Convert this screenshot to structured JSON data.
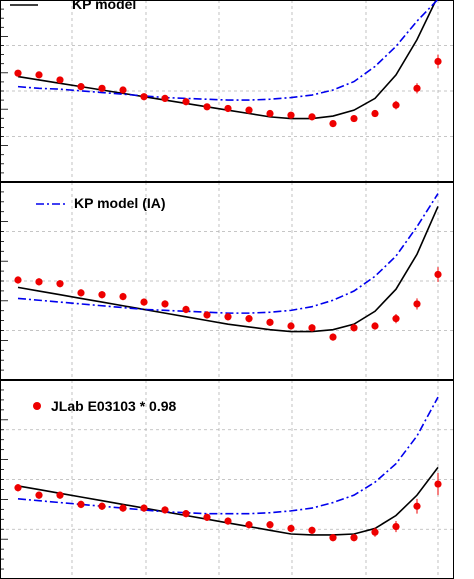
{
  "colors": {
    "frame": "#000000",
    "grid": "#b4b4b4",
    "kp_model": "#000000",
    "kp_model_ia": "#0000ee",
    "jlab_data": "#ee0000"
  },
  "legend": {
    "kp_model": "KP model",
    "kp_model_ia": "KP model (IA)",
    "jlab": "JLab E03103 * 0.98"
  },
  "chart_data": [
    {
      "type": "scatter",
      "panel": "top",
      "grid": true,
      "legend_position": "top-left",
      "xlim": [
        0,
        20
      ],
      "ylim": [
        0,
        1
      ],
      "series": [
        {
          "name": "KP model",
          "kind": "line",
          "style": "solid",
          "x": [
            0,
            1,
            2,
            3,
            4,
            5,
            6,
            7,
            8,
            9,
            10,
            11,
            12,
            13,
            14,
            15,
            16,
            17,
            18,
            19,
            20
          ],
          "y": [
            0.58,
            0.56,
            0.54,
            0.52,
            0.5,
            0.48,
            0.46,
            0.44,
            0.42,
            0.4,
            0.38,
            0.36,
            0.34,
            0.33,
            0.33,
            0.345,
            0.38,
            0.45,
            0.59,
            0.8,
            1.06
          ]
        },
        {
          "name": "KP model (IA)",
          "kind": "line",
          "style": "dash-dot",
          "x": [
            0,
            1,
            2,
            3,
            4,
            5,
            6,
            7,
            8,
            9,
            10,
            11,
            12,
            13,
            14,
            15,
            16,
            17,
            18,
            19,
            20
          ],
          "y": [
            0.52,
            0.51,
            0.505,
            0.495,
            0.485,
            0.475,
            0.465,
            0.455,
            0.45,
            0.445,
            0.44,
            0.44,
            0.445,
            0.455,
            0.47,
            0.5,
            0.55,
            0.64,
            0.76,
            0.91,
            1.04
          ]
        },
        {
          "name": "JLab E03103 * 0.98",
          "kind": "points",
          "x": [
            0,
            1,
            2,
            3,
            4,
            5,
            6,
            7,
            8,
            9,
            10,
            11,
            12,
            13,
            14,
            15,
            16,
            17,
            18,
            19,
            20
          ],
          "y": [
            0.6,
            0.59,
            0.56,
            0.52,
            0.51,
            0.5,
            0.46,
            0.45,
            0.43,
            0.4,
            0.39,
            0.38,
            0.36,
            0.35,
            0.34,
            0.3,
            0.33,
            0.36,
            0.41,
            0.51,
            0.67
          ],
          "err": [
            0.02,
            0.02,
            0.02,
            0.02,
            0.02,
            0.02,
            0.02,
            0.02,
            0.02,
            0.02,
            0.02,
            0.02,
            0.02,
            0.02,
            0.02,
            0.02,
            0.02,
            0.02,
            0.025,
            0.03,
            0.04
          ]
        }
      ]
    },
    {
      "type": "scatter",
      "panel": "middle",
      "grid": true,
      "legend_position": "top-left",
      "xlim": [
        0,
        20
      ],
      "ylim": [
        0,
        1
      ],
      "series": [
        {
          "name": "KP model",
          "kind": "line",
          "style": "solid",
          "x": [
            0,
            1,
            2,
            3,
            4,
            5,
            6,
            7,
            8,
            9,
            10,
            11,
            12,
            13,
            14,
            15,
            16,
            17,
            18,
            19,
            20
          ],
          "y": [
            0.46,
            0.44,
            0.42,
            0.4,
            0.38,
            0.36,
            0.34,
            0.32,
            0.3,
            0.28,
            0.26,
            0.245,
            0.23,
            0.22,
            0.22,
            0.23,
            0.26,
            0.33,
            0.45,
            0.64,
            0.9
          ]
        },
        {
          "name": "KP model (IA)",
          "kind": "line",
          "style": "dash-dot",
          "x": [
            0,
            1,
            2,
            3,
            4,
            5,
            6,
            7,
            8,
            9,
            10,
            11,
            12,
            13,
            14,
            15,
            16,
            17,
            18,
            19,
            20
          ],
          "y": [
            0.4,
            0.39,
            0.38,
            0.37,
            0.36,
            0.35,
            0.34,
            0.335,
            0.33,
            0.325,
            0.32,
            0.32,
            0.325,
            0.335,
            0.355,
            0.39,
            0.44,
            0.52,
            0.63,
            0.79,
            0.97
          ]
        },
        {
          "name": "JLab E03103 * 0.98",
          "kind": "points",
          "x": [
            0,
            1,
            2,
            3,
            4,
            5,
            6,
            7,
            8,
            9,
            10,
            11,
            12,
            13,
            14,
            15,
            16,
            17,
            18,
            19,
            20
          ],
          "y": [
            0.5,
            0.49,
            0.48,
            0.43,
            0.42,
            0.41,
            0.38,
            0.37,
            0.34,
            0.31,
            0.3,
            0.29,
            0.27,
            0.25,
            0.24,
            0.19,
            0.24,
            0.25,
            0.29,
            0.37,
            0.53
          ],
          "err": [
            0.02,
            0.02,
            0.02,
            0.02,
            0.02,
            0.02,
            0.02,
            0.02,
            0.02,
            0.02,
            0.02,
            0.02,
            0.02,
            0.02,
            0.02,
            0.02,
            0.02,
            0.02,
            0.025,
            0.03,
            0.04
          ]
        }
      ]
    },
    {
      "type": "scatter",
      "panel": "bottom",
      "grid": true,
      "legend_position": "top-left",
      "xlim": [
        0,
        20
      ],
      "ylim": [
        0,
        1
      ],
      "series": [
        {
          "name": "KP model",
          "kind": "line",
          "style": "solid",
          "x": [
            0,
            1,
            2,
            3,
            4,
            5,
            6,
            7,
            8,
            9,
            10,
            11,
            12,
            13,
            14,
            15,
            16,
            17,
            18,
            19,
            20
          ],
          "y": [
            0.46,
            0.44,
            0.42,
            0.4,
            0.38,
            0.36,
            0.34,
            0.32,
            0.3,
            0.28,
            0.26,
            0.24,
            0.22,
            0.2,
            0.195,
            0.195,
            0.2,
            0.23,
            0.3,
            0.41,
            0.56
          ]
        },
        {
          "name": "KP model (IA)",
          "kind": "line",
          "style": "dash-dot",
          "x": [
            0,
            1,
            2,
            3,
            4,
            5,
            6,
            7,
            8,
            9,
            10,
            11,
            12,
            13,
            14,
            15,
            16,
            17,
            18,
            19,
            20
          ],
          "y": [
            0.39,
            0.38,
            0.37,
            0.36,
            0.35,
            0.34,
            0.33,
            0.32,
            0.315,
            0.31,
            0.31,
            0.31,
            0.315,
            0.325,
            0.34,
            0.37,
            0.41,
            0.48,
            0.58,
            0.73,
            0.94
          ]
        },
        {
          "name": "JLab E03103 * 0.98",
          "kind": "points",
          "x": [
            0,
            1,
            2,
            3,
            4,
            5,
            6,
            7,
            8,
            9,
            10,
            11,
            12,
            13,
            14,
            15,
            16,
            17,
            18,
            19,
            20
          ],
          "y": [
            0.45,
            0.41,
            0.41,
            0.36,
            0.35,
            0.34,
            0.34,
            0.33,
            0.31,
            0.29,
            0.27,
            0.25,
            0.25,
            0.23,
            0.22,
            0.18,
            0.18,
            0.21,
            0.24,
            0.35,
            0.47
          ],
          "err": [
            0.02,
            0.02,
            0.02,
            0.02,
            0.02,
            0.02,
            0.02,
            0.02,
            0.02,
            0.02,
            0.02,
            0.02,
            0.02,
            0.02,
            0.02,
            0.02,
            0.02,
            0.025,
            0.03,
            0.04,
            0.06
          ]
        }
      ]
    }
  ]
}
